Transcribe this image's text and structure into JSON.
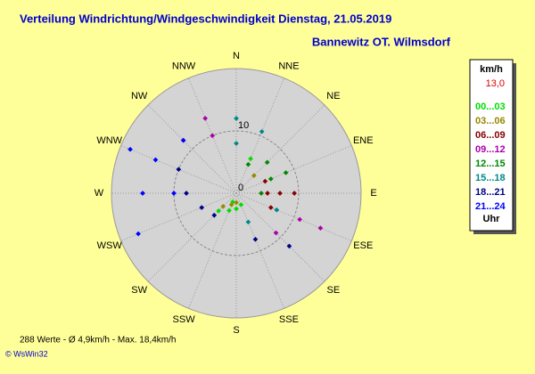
{
  "chart_data": {
    "type": "polar-scatter",
    "title": "Verteilung Windrichtung/Windgeschwindigkeit  Dienstag, 21.05.2019",
    "subtitle": "Bannewitz OT. Wilmsdorf",
    "categories": [
      "N",
      "NNE",
      "NE",
      "ENE",
      "E",
      "ESE",
      "SE",
      "SSE",
      "S",
      "SSW",
      "SW",
      "WSW",
      "W",
      "WNW",
      "NW",
      "NNW"
    ],
    "rlim": [
      0,
      20
    ],
    "rticks": [
      0,
      10
    ],
    "legend_title": "km/h",
    "legend_value": "13,0",
    "legend_footer": "Uhr",
    "series": [
      {
        "name": "00...03",
        "color": "#00dd00",
        "directions": [
          202.5,
          180,
          157.5,
          22.5,
          202.5,
          225
        ],
        "values": [
          3,
          2.5,
          2,
          6,
          1.5,
          4
        ]
      },
      {
        "name": "03...06",
        "color": "#998800",
        "directions": [
          202.5,
          225,
          45,
          180
        ],
        "values": [
          2,
          3,
          4,
          1.5
        ]
      },
      {
        "name": "06...09",
        "color": "#880000",
        "directions": [
          90,
          90,
          90,
          112.5,
          67.5
        ],
        "values": [
          9.3,
          7,
          5,
          6,
          5
        ]
      },
      {
        "name": "09...12",
        "color": "#aa00aa",
        "directions": [
          337.5,
          337.5,
          315,
          112.5,
          112.5,
          135
        ],
        "values": [
          13,
          10,
          12,
          14.6,
          11,
          9
        ]
      },
      {
        "name": "12...15",
        "color": "#008800",
        "directions": [
          67.5,
          67.5,
          45,
          22.5,
          90
        ],
        "values": [
          8.6,
          6,
          7,
          5,
          4
        ]
      },
      {
        "name": "15...18",
        "color": "#008888",
        "directions": [
          0,
          0,
          22.5,
          157.5,
          112.5
        ],
        "values": [
          12,
          8,
          10.7,
          5,
          7
        ]
      },
      {
        "name": "18...21",
        "color": "#000088",
        "directions": [
          292.5,
          270,
          247.5,
          135,
          157.5,
          225
        ],
        "values": [
          10,
          8,
          6,
          12,
          8,
          5
        ]
      },
      {
        "name": "21...24",
        "color": "#0000ff",
        "directions": [
          292.5,
          292.5,
          270,
          247.5,
          315,
          270
        ],
        "values": [
          18.4,
          14,
          15,
          17,
          12,
          10
        ]
      }
    ],
    "footer": "288 Werte   -   Ø 4,9km/h  -  Max. 18,4km/h",
    "credit": "© WsWin32"
  }
}
